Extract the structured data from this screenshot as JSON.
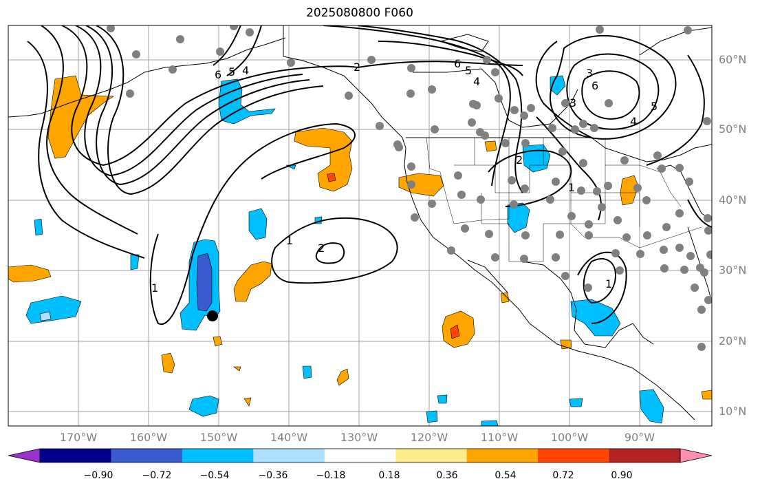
{
  "title": "2025080800 F060",
  "lat_labels": [
    "60°N",
    "50°N",
    "40°N",
    "30°N",
    "20°N",
    "10°N"
  ],
  "lon_labels": [
    "170°W",
    "160°W",
    "150°W",
    "140°W",
    "130°W",
    "120°W",
    "110°W",
    "100°W",
    "90°W"
  ],
  "colorbar": {
    "ticks": [
      "−0.90",
      "−0.72",
      "−0.54",
      "−0.36",
      "−0.18",
      "0.18",
      "0.36",
      "0.54",
      "0.72",
      "0.90"
    ],
    "colors": [
      "#9932CC",
      "#00008B",
      "#3A5BD0",
      "#00BFFF",
      "#ADDFFF",
      "#FFFFFF",
      "#FFEC8B",
      "#FFA500",
      "#FF4500",
      "#B22222",
      "#FF8EB0"
    ]
  },
  "contour_labels": [
    "6",
    "5",
    "4",
    "2",
    "6",
    "5",
    "4",
    "3",
    "6",
    "5",
    "4",
    "3",
    "2",
    "1",
    "1",
    "2",
    "1",
    "1"
  ],
  "marker": "station-marker"
}
